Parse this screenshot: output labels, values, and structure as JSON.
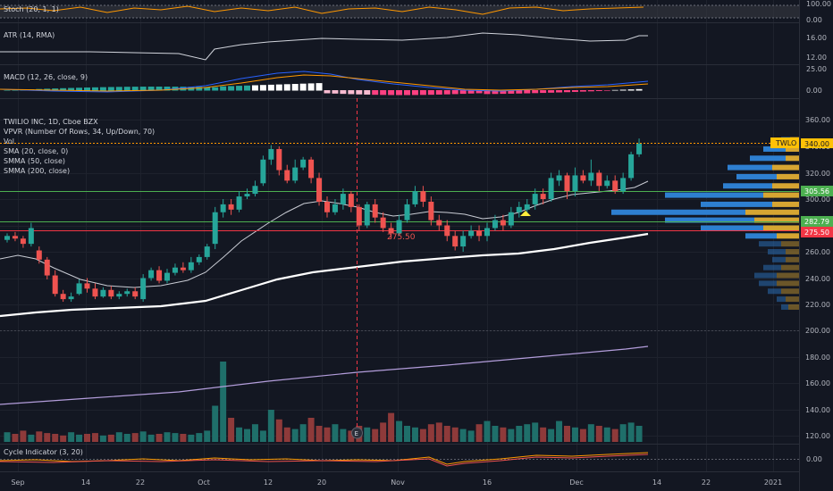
{
  "symbol": {
    "ticker": "TWLO",
    "title": "TWILIO INC, 1D, Cboe BZX",
    "last_price": "340.00"
  },
  "indicators": {
    "stoch": "Stoch (20, 1, 1)",
    "atr": "ATR (14, RMA)",
    "macd": "MACD (12, 26, close, 9)",
    "vpvr": "VPVR (Number Of Rows, 34, Up/Down, 70)",
    "vol": "Vol",
    "sma": "SMA (20, close, 0)",
    "smma50": "SMMA (50, close)",
    "smma200": "SMMA (200, close)",
    "cycle": "Cycle Indicator (3, 20)"
  },
  "axes": {
    "stoch_ticks": [
      "100.00",
      "0.00"
    ],
    "atr_ticks": [
      "16.00",
      "12.00"
    ],
    "macd_ticks": [
      "25.00",
      "0.00"
    ],
    "price_ticks": [
      "360.00",
      "340.00",
      "320.00",
      "300.00",
      "280.00",
      "260.00",
      "240.00",
      "220.00",
      "200.00",
      "180.00",
      "160.00",
      "140.00",
      "120.00"
    ],
    "cycle_ticks": [
      "0.00"
    ],
    "x_ticks": [
      "Sep",
      "14",
      "22",
      "Oct",
      "12",
      "20",
      "Nov",
      "16",
      "Dec",
      "14",
      "22",
      "2021"
    ]
  },
  "price_labels": {
    "resistance_1": "305.56",
    "support_1": "282.79",
    "support_2": "275.50",
    "annotation": "275.50"
  },
  "colors": {
    "up": "#26a69a",
    "down": "#ef5350",
    "vol_up": "#1f6f6a",
    "vol_down": "#8e3a3a",
    "green_line": "#4caf50",
    "red_line": "#f23645",
    "sma": "#d1d4dc",
    "smma200": "#b39ddb",
    "macd_line": "#2962ff",
    "signal_line": "#ff9800",
    "vp_up": "#2e7fd0",
    "vp_down": "#d6a532",
    "ticker_bg": "#ffc107"
  },
  "event_marker": "E",
  "candles": [
    [
      269,
      272,
      274,
      267
    ],
    [
      272,
      270,
      275,
      268
    ],
    [
      270,
      266,
      272,
      263
    ],
    [
      266,
      278,
      282,
      264
    ],
    [
      261,
      254,
      264,
      251
    ],
    [
      254,
      242,
      256,
      239
    ],
    [
      242,
      228,
      246,
      226
    ],
    [
      228,
      224,
      231,
      222
    ],
    [
      224,
      226,
      229,
      222
    ],
    [
      228,
      236,
      239,
      227
    ],
    [
      236,
      232,
      240,
      229
    ],
    [
      232,
      226,
      236,
      224
    ],
    [
      226,
      231,
      233,
      225
    ],
    [
      231,
      226,
      234,
      224
    ],
    [
      226,
      228,
      230,
      224
    ],
    [
      228,
      230,
      232,
      226
    ],
    [
      230,
      226,
      233,
      224
    ],
    [
      224,
      240,
      243,
      222
    ],
    [
      240,
      246,
      248,
      238
    ],
    [
      246,
      238,
      249,
      236
    ],
    [
      238,
      244,
      247,
      236
    ],
    [
      244,
      248,
      251,
      242
    ],
    [
      248,
      246,
      252,
      244
    ],
    [
      246,
      252,
      256,
      244
    ],
    [
      252,
      256,
      258,
      250
    ],
    [
      256,
      264,
      266,
      254
    ],
    [
      266,
      290,
      294,
      262
    ],
    [
      290,
      296,
      300,
      286
    ],
    [
      296,
      292,
      300,
      288
    ],
    [
      292,
      302,
      306,
      290
    ],
    [
      302,
      304,
      308,
      300
    ],
    [
      304,
      310,
      314,
      302
    ],
    [
      312,
      330,
      333,
      310
    ],
    [
      330,
      338,
      341,
      326
    ],
    [
      338,
      322,
      340,
      318
    ],
    [
      322,
      314,
      326,
      312
    ],
    [
      314,
      324,
      330,
      312
    ],
    [
      324,
      330,
      332,
      322
    ],
    [
      330,
      316,
      332,
      312
    ],
    [
      316,
      298,
      320,
      295
    ],
    [
      298,
      290,
      302,
      286
    ],
    [
      290,
      296,
      300,
      288
    ],
    [
      296,
      304,
      308,
      292
    ],
    [
      304,
      294,
      306,
      290
    ],
    [
      294,
      280,
      296,
      276
    ],
    [
      280,
      296,
      298,
      278
    ],
    [
      296,
      286,
      300,
      282
    ],
    [
      286,
      278,
      290,
      275
    ],
    [
      278,
      274,
      282,
      270
    ],
    [
      274,
      284,
      288,
      272
    ],
    [
      284,
      296,
      300,
      282
    ],
    [
      296,
      306,
      310,
      294
    ],
    [
      306,
      298,
      310,
      294
    ],
    [
      298,
      284,
      302,
      280
    ],
    [
      284,
      280,
      288,
      276
    ],
    [
      280,
      272,
      284,
      268
    ],
    [
      272,
      264,
      276,
      261
    ],
    [
      264,
      272,
      276,
      260
    ],
    [
      272,
      276,
      280,
      270
    ],
    [
      276,
      272,
      280,
      268
    ],
    [
      272,
      278,
      282,
      268
    ],
    [
      278,
      284,
      288,
      276
    ],
    [
      284,
      280,
      288,
      276
    ],
    [
      280,
      290,
      294,
      278
    ],
    [
      290,
      294,
      298,
      286
    ],
    [
      292,
      296,
      300,
      290
    ],
    [
      296,
      304,
      308,
      292
    ],
    [
      304,
      300,
      308,
      296
    ],
    [
      300,
      316,
      320,
      298
    ],
    [
      314,
      318,
      322,
      310
    ],
    [
      318,
      306,
      320,
      300
    ],
    [
      306,
      318,
      324,
      302
    ],
    [
      318,
      314,
      322,
      312
    ],
    [
      314,
      320,
      330,
      310
    ],
    [
      320,
      310,
      322,
      306
    ],
    [
      310,
      314,
      318,
      308
    ],
    [
      314,
      306,
      318,
      304
    ],
    [
      306,
      316,
      320,
      304
    ],
    [
      316,
      334,
      336,
      314
    ],
    [
      334,
      342,
      346,
      332
    ]
  ]
}
